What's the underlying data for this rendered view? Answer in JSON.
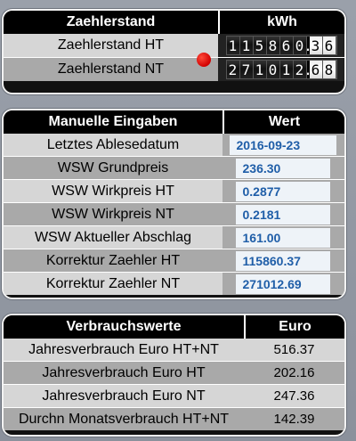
{
  "meter": {
    "header": {
      "name": "Zaehlerstand",
      "unit": "kWh"
    },
    "rows": [
      {
        "label": "Zaehlerstand HT",
        "integer": [
          "1",
          "1",
          "5",
          "8",
          "6",
          "0"
        ],
        "decimal": [
          "3",
          "6"
        ]
      },
      {
        "label": "Zaehlerstand NT",
        "integer": [
          "2",
          "7",
          "1",
          "0",
          "1",
          "2"
        ],
        "decimal": [
          "6",
          "8"
        ]
      }
    ],
    "indicator_color": "#e00000"
  },
  "manual": {
    "header": {
      "name": "Manuelle Eingaben",
      "value": "Wert"
    },
    "rows": [
      {
        "label": "Letztes Ablesedatum",
        "value": "2016-09-23"
      },
      {
        "label": "WSW Grundpreis",
        "value": "236.30"
      },
      {
        "label": "WSW Wirkpreis HT",
        "value": "0.2877"
      },
      {
        "label": "WSW Wirkpreis NT",
        "value": "0.2181"
      },
      {
        "label": "WSW Aktueller Abschlag",
        "value": "161.00"
      },
      {
        "label": "Korrektur Zaehler HT",
        "value": "115860.37"
      },
      {
        "label": "Korrektur Zaehler NT",
        "value": "271012.69"
      }
    ],
    "value_color": "#1f5ea8"
  },
  "consumption": {
    "header": {
      "name": "Verbrauchswerte",
      "value": "Euro"
    },
    "rows": [
      {
        "label": "Jahresverbrauch Euro HT+NT",
        "value": "516.37"
      },
      {
        "label": "Jahresverbrauch Euro HT",
        "value": "202.16"
      },
      {
        "label": "Jahresverbrauch Euro NT",
        "value": "247.36"
      },
      {
        "label": "Durchn Monatsverbrauch HT+NT",
        "value": "142.39"
      }
    ]
  }
}
